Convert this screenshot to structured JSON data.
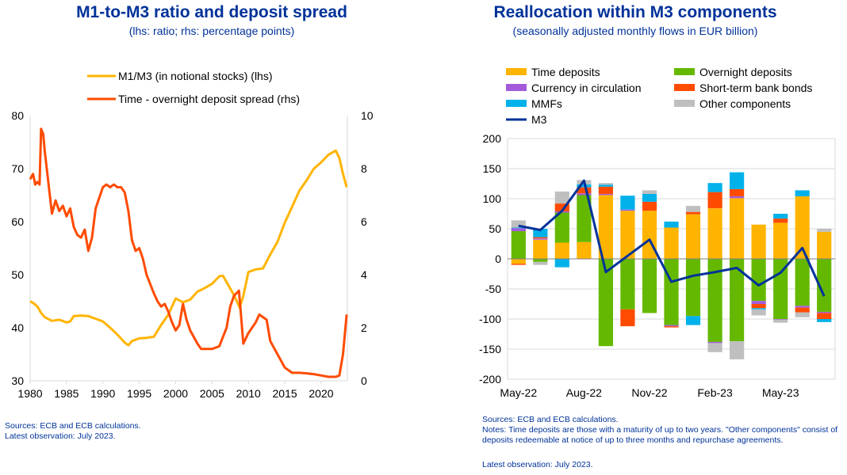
{
  "left_chart": {
    "title": "M1-to-M3 ratio and deposit spread",
    "subtitle": "(lhs: ratio; rhs: percentage points)",
    "sources": "Sources: ECB and ECB calculations.",
    "latest": "Latest observation: July 2023.",
    "colors": {
      "ratio": "#FFB400",
      "spread": "#FF4B00",
      "grid": "#d9d9d9",
      "axis": "#000000",
      "text": "#000000"
    }
  },
  "right_chart": {
    "title": "Reallocation within M3 components",
    "subtitle": "(seasonally adjusted monthly flows in EUR billion)",
    "sources": "Sources: ECB and ECB calculations.",
    "notes": "Notes: Time deposits are those with a maturity of up to two years. \"Other components\" consist of deposits redeemable at notice of up to three months and repurchase agreements.",
    "latest": "Latest observation: July 2023."
  },
  "chart_data": [
    {
      "type": "line",
      "title": "M1-to-M3 ratio and deposit spread",
      "subtitle": "(lhs: ratio; rhs: percentage points)",
      "xlim": [
        1980,
        2023.6
      ],
      "xticks": [
        "1980",
        "1985",
        "1990",
        "1995",
        "2000",
        "2005",
        "2010",
        "2015",
        "2020"
      ],
      "ylim_left": [
        30,
        80
      ],
      "yticks_left": [
        "30",
        "40",
        "50",
        "60",
        "70",
        "80"
      ],
      "ylim_right": [
        0,
        10
      ],
      "yticks_right": [
        "0",
        "2",
        "4",
        "6",
        "8",
        "10"
      ],
      "legend_position": "top-center",
      "series": [
        {
          "name": "M1/M3 (in notional stocks) (lhs)",
          "axis": "left",
          "color": "#FFB400",
          "points": [
            [
              1980,
              45.0
            ],
            [
              1980.5,
              44.6
            ],
            [
              1981,
              44.0
            ],
            [
              1981.5,
              42.8
            ],
            [
              1982,
              42.0
            ],
            [
              1983,
              41.3
            ],
            [
              1984,
              41.5
            ],
            [
              1985,
              41.0
            ],
            [
              1985.5,
              41.2
            ],
            [
              1986,
              42.2
            ],
            [
              1987,
              42.3
            ],
            [
              1988,
              42.2
            ],
            [
              1989,
              41.7
            ],
            [
              1990,
              41.2
            ],
            [
              1991,
              40.0
            ],
            [
              1992,
              38.7
            ],
            [
              1993,
              37.2
            ],
            [
              1993.5,
              36.7
            ],
            [
              1994,
              37.5
            ],
            [
              1995,
              38.0
            ],
            [
              1996,
              38.1
            ],
            [
              1997,
              38.3
            ],
            [
              1998,
              40.5
            ],
            [
              1999,
              42.5
            ],
            [
              2000,
              45.5
            ],
            [
              2001,
              44.8
            ],
            [
              2002,
              45.3
            ],
            [
              2003,
              46.8
            ],
            [
              2004,
              47.5
            ],
            [
              2005,
              48.3
            ],
            [
              2006,
              49.7
            ],
            [
              2006.5,
              49.8
            ],
            [
              2007,
              48.6
            ],
            [
              2008,
              46.2
            ],
            [
              2008.8,
              43.8
            ],
            [
              2009.3,
              46.0
            ],
            [
              2010,
              50.5
            ],
            [
              2011,
              51.0
            ],
            [
              2012,
              51.2
            ],
            [
              2013,
              53.8
            ],
            [
              2014,
              56.2
            ],
            [
              2015,
              59.8
            ],
            [
              2016,
              62.8
            ],
            [
              2017,
              65.8
            ],
            [
              2018,
              67.8
            ],
            [
              2019,
              70.0
            ],
            [
              2020,
              71.2
            ],
            [
              2021,
              72.6
            ],
            [
              2022,
              73.4
            ],
            [
              2022.5,
              72.0
            ],
            [
              2023,
              69.0
            ],
            [
              2023.5,
              66.5
            ]
          ]
        },
        {
          "name": "Time - overnight deposit spread (rhs)",
          "axis": "right",
          "color": "#FF4B00",
          "points": [
            [
              1980,
              7.6
            ],
            [
              1980.4,
              7.8
            ],
            [
              1980.7,
              7.4
            ],
            [
              1981,
              7.5
            ],
            [
              1981.3,
              7.4
            ],
            [
              1981.5,
              9.5
            ],
            [
              1981.8,
              9.3
            ],
            [
              1982,
              8.7
            ],
            [
              1982.5,
              7.5
            ],
            [
              1983,
              6.3
            ],
            [
              1983.5,
              6.8
            ],
            [
              1984,
              6.4
            ],
            [
              1984.5,
              6.6
            ],
            [
              1985,
              6.2
            ],
            [
              1985.5,
              6.5
            ],
            [
              1986,
              5.8
            ],
            [
              1986.5,
              5.5
            ],
            [
              1987,
              5.4
            ],
            [
              1987.5,
              5.7
            ],
            [
              1988,
              4.9
            ],
            [
              1988.5,
              5.4
            ],
            [
              1989,
              6.5
            ],
            [
              1990,
              7.3
            ],
            [
              1990.5,
              7.4
            ],
            [
              1991,
              7.3
            ],
            [
              1991.5,
              7.4
            ],
            [
              1992,
              7.3
            ],
            [
              1992.5,
              7.3
            ],
            [
              1993,
              7.1
            ],
            [
              1993.5,
              6.4
            ],
            [
              1994,
              5.3
            ],
            [
              1994.5,
              4.9
            ],
            [
              1995,
              5.0
            ],
            [
              1995.5,
              4.6
            ],
            [
              1996,
              4.0
            ],
            [
              1997,
              3.3
            ],
            [
              1997.5,
              3.0
            ],
            [
              1998,
              2.8
            ],
            [
              1998.5,
              2.9
            ],
            [
              1999,
              2.6
            ],
            [
              1999.5,
              2.2
            ],
            [
              2000,
              1.9
            ],
            [
              2000.5,
              2.1
            ],
            [
              2001,
              2.9
            ],
            [
              2001.5,
              2.3
            ],
            [
              2002,
              1.9
            ],
            [
              2003,
              1.4
            ],
            [
              2003.5,
              1.2
            ],
            [
              2004,
              1.2
            ],
            [
              2005,
              1.2
            ],
            [
              2006,
              1.3
            ],
            [
              2007,
              2.0
            ],
            [
              2007.5,
              2.8
            ],
            [
              2008,
              3.2
            ],
            [
              2008.7,
              3.4
            ],
            [
              2009,
              2.4
            ],
            [
              2009.3,
              1.4
            ],
            [
              2010,
              1.8
            ],
            [
              2010.5,
              2.0
            ],
            [
              2011,
              2.2
            ],
            [
              2011.5,
              2.5
            ],
            [
              2012,
              2.4
            ],
            [
              2012.5,
              2.3
            ],
            [
              2013,
              1.5
            ],
            [
              2014,
              1.0
            ],
            [
              2015,
              0.5
            ],
            [
              2016,
              0.3
            ],
            [
              2017,
              0.3
            ],
            [
              2018,
              0.28
            ],
            [
              2019,
              0.25
            ],
            [
              2020,
              0.2
            ],
            [
              2021,
              0.15
            ],
            [
              2022,
              0.15
            ],
            [
              2022.5,
              0.2
            ],
            [
              2023,
              1.0
            ],
            [
              2023.5,
              2.5
            ]
          ]
        }
      ]
    },
    {
      "type": "bar",
      "stacked": true,
      "title": "Reallocation within M3 components",
      "subtitle": "(seasonally adjusted monthly flows in EUR billion)",
      "categories": [
        "May-22",
        "Jun-22",
        "Jul-22",
        "Aug-22",
        "Sep-22",
        "Oct-22",
        "Nov-22",
        "Dec-22",
        "Jan-23",
        "Feb-23",
        "Mar-23",
        "Apr-23",
        "May-23",
        "Jun-23",
        "Jul-23"
      ],
      "xtick_labels": [
        "May-22",
        "Aug-22",
        "Nov-22",
        "Feb-23",
        "May-23"
      ],
      "ylim": [
        -200,
        200
      ],
      "yticks": [
        "-200",
        "-150",
        "-100",
        "-50",
        "0",
        "50",
        "100",
        "150",
        "200"
      ],
      "legend_position": "top",
      "series": [
        {
          "name": "Time deposits",
          "color": "#FFB400",
          "values": [
            -8,
            32,
            27,
            28,
            106,
            80,
            80,
            52,
            74,
            84,
            101,
            57,
            60,
            104,
            45
          ]
        },
        {
          "name": "Overnight deposits",
          "color": "#65B800",
          "values": [
            46,
            -5,
            50,
            78,
            -145,
            -84,
            -90,
            -110,
            -95,
            -138,
            -137,
            -70,
            -100,
            -78,
            -88
          ]
        },
        {
          "name": "Currency in circulation",
          "color": "#A35BDB",
          "values": [
            5,
            2,
            2,
            3,
            2,
            2,
            0,
            -2,
            0,
            -2,
            3,
            -5,
            -1,
            -3,
            -2
          ]
        },
        {
          "name": "Short-term bank bonds",
          "color": "#FF4B00",
          "values": [
            -2,
            2,
            13,
            10,
            12,
            -28,
            15,
            -2,
            4,
            27,
            12,
            -7,
            7,
            -8,
            -10
          ]
        },
        {
          "name": "MMFs",
          "color": "#00B1EA",
          "values": [
            1,
            14,
            -14,
            5,
            3,
            23,
            13,
            10,
            -15,
            15,
            28,
            -2,
            8,
            10,
            -5
          ]
        },
        {
          "name": "Other components",
          "color": "#BFBFBF",
          "values": [
            12,
            -5,
            20,
            7,
            3,
            0,
            6,
            0,
            10,
            -15,
            -30,
            -10,
            -5,
            -8,
            5
          ]
        }
      ],
      "line_series": {
        "name": "M3",
        "color": "#003299",
        "values": [
          55,
          48,
          80,
          130,
          -22,
          5,
          32,
          -38,
          -28,
          -22,
          -15,
          -44,
          -23,
          18,
          -62
        ]
      }
    }
  ]
}
